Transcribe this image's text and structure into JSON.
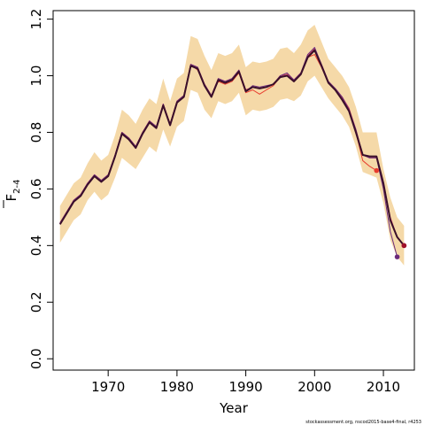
{
  "chart_data": {
    "type": "line",
    "title": "",
    "xlabel": "Year",
    "ylabel_main": "F",
    "ylabel_sub": "2-4",
    "xlim": [
      1962,
      2014.5
    ],
    "ylim": [
      -0.04,
      1.23
    ],
    "x_ticks": [
      1970,
      1980,
      1990,
      2000,
      2010
    ],
    "y_ticks": [
      0.0,
      0.2,
      0.4,
      0.6,
      0.8,
      1.0,
      1.2
    ],
    "y_tick_labels": [
      "0.0",
      "0.2",
      "0.4",
      "0.6",
      "0.8",
      "1.0",
      "1.2"
    ],
    "grid": false,
    "band": {
      "color": "#f5d9a8",
      "x": [
        1963,
        1964,
        1965,
        1966,
        1967,
        1968,
        1969,
        1970,
        1971,
        1972,
        1973,
        1974,
        1975,
        1976,
        1977,
        1978,
        1979,
        1980,
        1981,
        1982,
        1983,
        1984,
        1985,
        1986,
        1987,
        1988,
        1989,
        1990,
        1991,
        1992,
        1993,
        1994,
        1995,
        1996,
        1997,
        1998,
        1999,
        2000,
        2001,
        2002,
        2003,
        2004,
        2005,
        2006,
        2007,
        2008,
        2009,
        2010,
        2011,
        2012,
        2013
      ],
      "lower": [
        0.41,
        0.45,
        0.49,
        0.51,
        0.56,
        0.59,
        0.56,
        0.58,
        0.64,
        0.71,
        0.69,
        0.67,
        0.71,
        0.75,
        0.73,
        0.81,
        0.75,
        0.82,
        0.84,
        0.95,
        0.94,
        0.88,
        0.85,
        0.91,
        0.9,
        0.91,
        0.94,
        0.86,
        0.88,
        0.875,
        0.88,
        0.89,
        0.915,
        0.92,
        0.91,
        0.93,
        0.98,
        1.0,
        0.96,
        0.92,
        0.89,
        0.86,
        0.82,
        0.75,
        0.66,
        0.65,
        0.64,
        0.55,
        0.42,
        0.36,
        0.33
      ],
      "upper": [
        0.54,
        0.58,
        0.62,
        0.64,
        0.69,
        0.73,
        0.7,
        0.72,
        0.79,
        0.88,
        0.86,
        0.83,
        0.88,
        0.92,
        0.9,
        0.99,
        0.91,
        0.99,
        1.01,
        1.14,
        1.13,
        1.07,
        1.02,
        1.08,
        1.07,
        1.08,
        1.11,
        1.03,
        1.05,
        1.045,
        1.05,
        1.06,
        1.095,
        1.1,
        1.08,
        1.11,
        1.16,
        1.18,
        1.12,
        1.06,
        1.03,
        1.0,
        0.96,
        0.89,
        0.8,
        0.8,
        0.8,
        0.67,
        0.57,
        0.5,
        0.47
      ]
    },
    "series": [
      {
        "color": "#e83c2e",
        "x": [
          1963,
          1964,
          1965,
          1966,
          1967,
          1968,
          1969,
          1970,
          1971,
          1972,
          1973,
          1974,
          1975,
          1976,
          1977,
          1978,
          1979,
          1980,
          1981,
          1982,
          1983,
          1984,
          1985,
          1986,
          1987,
          1988,
          1989,
          1990,
          1991,
          1992,
          1993,
          1994,
          1995,
          1996,
          1997,
          1998,
          1999,
          2000,
          2001,
          2002,
          2003,
          2004,
          2005,
          2006,
          2007,
          2008,
          2009
        ],
        "values": [
          0.48,
          0.52,
          0.56,
          0.58,
          0.62,
          0.65,
          0.63,
          0.65,
          0.72,
          0.8,
          0.78,
          0.75,
          0.8,
          0.84,
          0.82,
          0.9,
          0.83,
          0.91,
          0.93,
          1.04,
          1.02,
          0.97,
          0.93,
          0.98,
          0.97,
          0.98,
          1.01,
          0.94,
          0.95,
          0.935,
          0.95,
          0.965,
          0.995,
          1.0,
          0.985,
          1.01,
          1.065,
          1.075,
          1.03,
          0.975,
          0.95,
          0.92,
          0.88,
          0.8,
          0.7,
          0.68,
          0.665
        ]
      },
      {
        "color": "#c7375a",
        "x": [
          1963,
          1964,
          1965,
          1966,
          1967,
          1968,
          1969,
          1970,
          1971,
          1972,
          1973,
          1974,
          1975,
          1976,
          1977,
          1978,
          1979,
          1980,
          1981,
          1982,
          1983,
          1984,
          1985,
          1986,
          1987,
          1988,
          1989,
          1990,
          1991,
          1992,
          1993,
          1994,
          1995,
          1996,
          1997,
          1998,
          1999,
          2000,
          2001,
          2002,
          2003,
          2004,
          2005,
          2006,
          2007,
          2008,
          2009,
          2010,
          2011,
          2012,
          2013
        ],
        "values": [
          0.48,
          0.52,
          0.56,
          0.58,
          0.62,
          0.65,
          0.63,
          0.65,
          0.72,
          0.8,
          0.78,
          0.75,
          0.8,
          0.84,
          0.82,
          0.9,
          0.83,
          0.91,
          0.93,
          1.04,
          1.03,
          0.97,
          0.93,
          0.99,
          0.98,
          0.99,
          1.02,
          0.95,
          0.96,
          0.955,
          0.96,
          0.97,
          1.0,
          1.005,
          0.985,
          1.01,
          1.07,
          1.095,
          1.04,
          0.98,
          0.955,
          0.925,
          0.885,
          0.81,
          0.72,
          0.71,
          0.71,
          0.62,
          0.5,
          0.43,
          0.4
        ]
      },
      {
        "color": "#6a2a7c",
        "x": [
          1963,
          1964,
          1965,
          1966,
          1967,
          1968,
          1969,
          1970,
          1971,
          1972,
          1973,
          1974,
          1975,
          1976,
          1977,
          1978,
          1979,
          1980,
          1981,
          1982,
          1983,
          1984,
          1985,
          1986,
          1987,
          1988,
          1989,
          1990,
          1991,
          1992,
          1993,
          1994,
          1995,
          1996,
          1997,
          1998,
          1999,
          2000,
          2001,
          2002,
          2003,
          2004,
          2005,
          2006,
          2007,
          2008,
          2009,
          2010,
          2011,
          2012
        ],
        "values": [
          0.48,
          0.52,
          0.56,
          0.58,
          0.62,
          0.65,
          0.63,
          0.65,
          0.72,
          0.8,
          0.78,
          0.75,
          0.8,
          0.84,
          0.82,
          0.9,
          0.83,
          0.91,
          0.93,
          1.04,
          1.03,
          0.97,
          0.93,
          0.99,
          0.98,
          0.99,
          1.02,
          0.945,
          0.965,
          0.96,
          0.965,
          0.97,
          1.0,
          1.01,
          0.985,
          1.01,
          1.075,
          1.1,
          1.04,
          0.98,
          0.955,
          0.925,
          0.88,
          0.81,
          0.72,
          0.71,
          0.71,
          0.6,
          0.45,
          0.36
        ]
      },
      {
        "color": "#3a0f2a",
        "x": [
          1963,
          1964,
          1965,
          1966,
          1967,
          1968,
          1969,
          1970,
          1971,
          1972,
          1973,
          1974,
          1975,
          1976,
          1977,
          1978,
          1979,
          1980,
          1981,
          1982,
          1983,
          1984,
          1985,
          1986,
          1987,
          1988,
          1989,
          1990,
          1991,
          1992,
          1993,
          1994,
          1995,
          1996,
          1997,
          1998,
          1999,
          2000,
          2001,
          2002,
          2003,
          2004,
          2005,
          2006,
          2007,
          2008,
          2009,
          2010,
          2011,
          2012,
          2013
        ],
        "values": [
          0.475,
          0.515,
          0.555,
          0.575,
          0.615,
          0.645,
          0.625,
          0.645,
          0.715,
          0.795,
          0.775,
          0.745,
          0.795,
          0.835,
          0.815,
          0.895,
          0.825,
          0.905,
          0.925,
          1.035,
          1.025,
          0.965,
          0.925,
          0.985,
          0.975,
          0.985,
          1.015,
          0.945,
          0.96,
          0.955,
          0.96,
          0.97,
          0.995,
          1.0,
          0.98,
          1.005,
          1.065,
          1.09,
          1.035,
          0.975,
          0.95,
          0.915,
          0.875,
          0.8,
          0.72,
          0.715,
          0.715,
          0.62,
          0.49,
          0.43,
          0.4
        ]
      }
    ],
    "end_points": [
      {
        "x": 2009,
        "y": 0.665,
        "color": "#e83c2e"
      },
      {
        "x": 2012,
        "y": 0.36,
        "color": "#6a2a7c"
      },
      {
        "x": 2013,
        "y": 0.4,
        "color": "#c7375a"
      },
      {
        "x": 2013,
        "y": 0.4,
        "color": "#a0102a"
      }
    ]
  },
  "footer": {
    "text": "stockassessment.org, nscod2015-base4-final, r4253"
  }
}
